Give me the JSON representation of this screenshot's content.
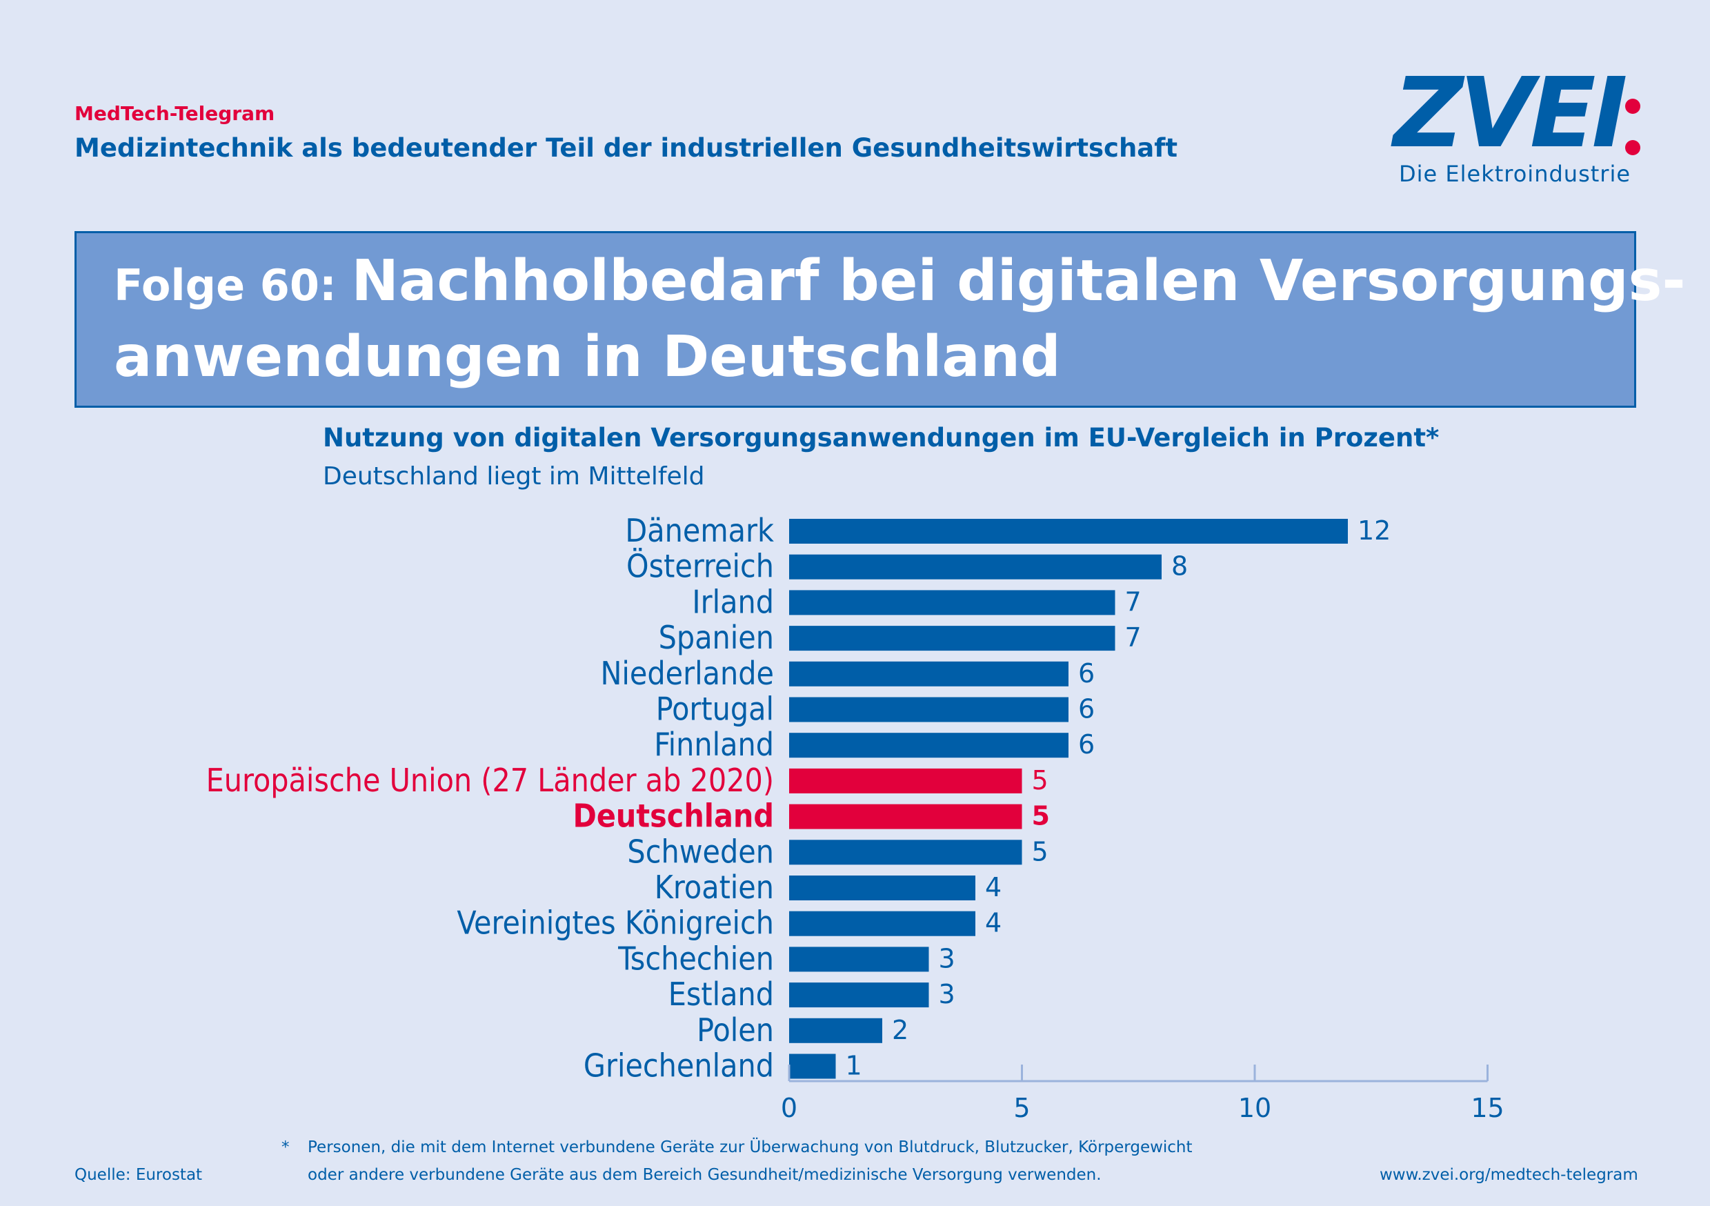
{
  "header": {
    "kicker": "MedTech-Telegram",
    "series_title": "Medizintechnik als bedeutender Teil der industriellen Gesundheitswirtschaft",
    "logo_text": "ZVEI",
    "logo_subtitle": "Die Elektroindustrie"
  },
  "headline": {
    "prefix": "Folge 60: ",
    "line1": "Nachholbedarf bei digitalen Versorgungs-",
    "line2": "anwendungen in Deutschland"
  },
  "colors": {
    "primary": "#005ea8",
    "highlight": "#e2003c",
    "headline_box": "#729ad3",
    "background": "#dfe6f5",
    "axis": "#9bb3dc"
  },
  "chart_data": {
    "type": "bar",
    "orientation": "horizontal",
    "title": "Nutzung von digitalen Versorgungsanwendungen im EU-Vergleich in Prozent*",
    "subtitle": "Deutschland liegt im Mittelfeld",
    "categories": [
      "Dänemark",
      "Österreich",
      "Irland",
      "Spanien",
      "Niederlande",
      "Portugal",
      "Finnland",
      "Europäische Union (27 Länder ab 2020)",
      "Deutschland",
      "Schweden",
      "Kroatien",
      "Vereinigtes Königreich",
      "Tschechien",
      "Estland",
      "Polen",
      "Griechenland"
    ],
    "values": [
      12,
      8,
      7,
      7,
      6,
      6,
      6,
      5,
      5,
      5,
      4,
      4,
      3,
      3,
      2,
      1
    ],
    "highlight": [
      "",
      "",
      "",
      "",
      "",
      "",
      "",
      "eu",
      "de",
      "",
      "",
      "",
      "",
      "",
      "",
      ""
    ],
    "xlim": [
      0,
      15
    ],
    "xticks": [
      0,
      5,
      10,
      15
    ],
    "grid": false,
    "legend": "none"
  },
  "footer": {
    "footnote_mark": "*",
    "footnote_line1": "Personen, die mit dem Internet verbundene Geräte zur Überwachung von Blutdruck, Blutzucker, Körpergewicht",
    "footnote_line2": "oder andere verbundene Geräte aus dem Bereich Gesundheit/medizinische Versorgung verwenden.",
    "source": "Quelle: Eurostat",
    "url": "www.zvei.org/medtech-telegram"
  }
}
